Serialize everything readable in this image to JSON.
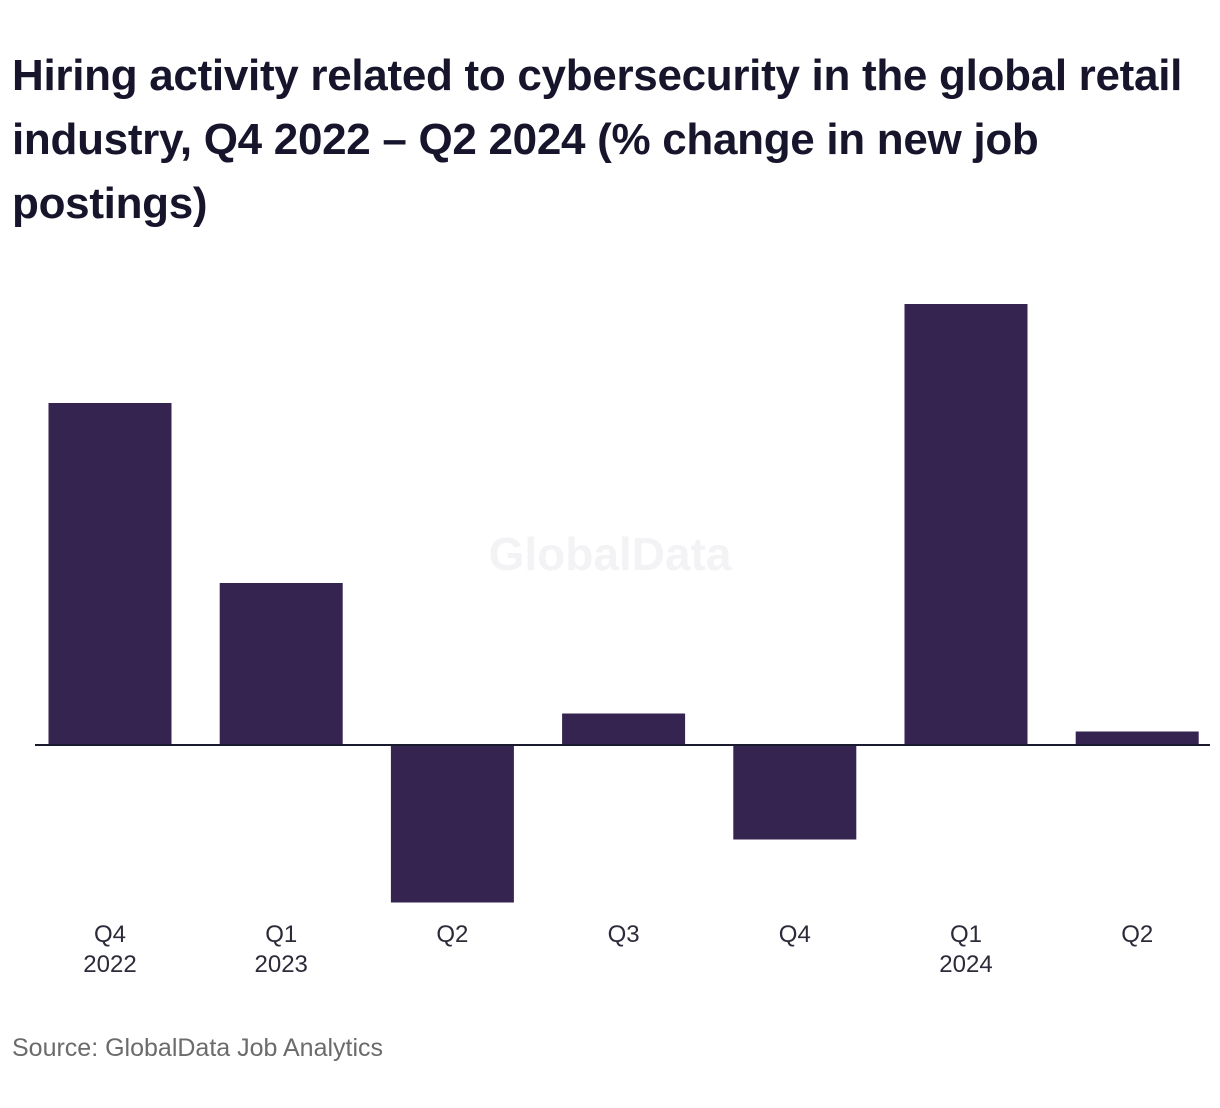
{
  "chart_data": {
    "type": "bar",
    "title": "Hiring activity related to cybersecurity in the global retail industry, Q4 2022 – Q2 2024 (% change in new job postings)",
    "categories": [
      {
        "quarter": "Q4",
        "year": "2022"
      },
      {
        "quarter": "Q1",
        "year": "2023"
      },
      {
        "quarter": "Q2",
        "year": ""
      },
      {
        "quarter": "Q3",
        "year": ""
      },
      {
        "quarter": "Q4",
        "year": ""
      },
      {
        "quarter": "Q1",
        "year": "2024"
      },
      {
        "quarter": "Q2",
        "year": ""
      }
    ],
    "values": [
      76,
      36,
      -35,
      7,
      -21,
      98,
      3
    ],
    "xlabel": "",
    "ylabel": "",
    "ylim": [
      -40,
      100
    ],
    "grid": false,
    "legend": "none",
    "bar_color": "#352350",
    "baseline_color": "#1a1a2e"
  },
  "watermark": "GlobalData",
  "source": "Source: GlobalData Job Analytics"
}
